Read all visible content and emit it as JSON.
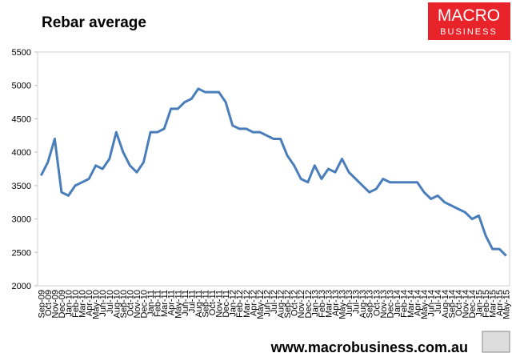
{
  "chart_data": {
    "type": "line",
    "title": "Rebar average",
    "categories": [
      "Sep-09",
      "Oct-09",
      "Nov-09",
      "Dec-09",
      "Jan-10",
      "Feb-10",
      "Mar-10",
      "Apr-10",
      "May-10",
      "Jun-10",
      "Jul-10",
      "Aug-10",
      "Sep-10",
      "Oct-10",
      "Nov-10",
      "Dec-10",
      "Jan-11",
      "Feb-11",
      "Mar-11",
      "Apr-11",
      "May-11",
      "Jun-11",
      "Jul-11",
      "Aug-11",
      "Sep-11",
      "Oct-11",
      "Nov-11",
      "Dec-11",
      "Jan-12",
      "Feb-12",
      "Mar-12",
      "Apr-12",
      "May-12",
      "Jun-12",
      "Jul-12",
      "Aug-12",
      "Sep-12",
      "Oct-12",
      "Nov-12",
      "Dec-12",
      "Jan-13",
      "Feb-13",
      "Mar-13",
      "Apr-13",
      "May-13",
      "Jun-13",
      "Jul-13",
      "Aug-13",
      "Sep-13",
      "Oct-13",
      "Nov-13",
      "Dec-13",
      "Jan-14",
      "Feb-14",
      "Mar-14",
      "Apr-14",
      "May-14",
      "Jun-14",
      "Jul-14",
      "Aug-14",
      "Sep-14",
      "Oct-14",
      "Nov-14",
      "Dec-14",
      "Jan-15",
      "Feb-15",
      "Mar-15",
      "Apr-15",
      "May-15"
    ],
    "values": [
      3650,
      3850,
      4200,
      3400,
      3350,
      3500,
      3550,
      3600,
      3800,
      3750,
      3900,
      4300,
      4000,
      3800,
      3700,
      3850,
      4300,
      4300,
      4350,
      4650,
      4650,
      4750,
      4800,
      4950,
      4900,
      4900,
      4900,
      4750,
      4400,
      4350,
      4350,
      4300,
      4300,
      4250,
      4200,
      4200,
      3950,
      3800,
      3600,
      3550,
      3800,
      3600,
      3750,
      3700,
      3900,
      3700,
      3600,
      3500,
      3400,
      3450,
      3600,
      3550,
      3550,
      3550,
      3550,
      3550,
      3400,
      3300,
      3350,
      3250,
      3200,
      3150,
      3100,
      3000,
      3050,
      2750,
      2550,
      2550,
      2450
    ],
    "color": "#4a7ebb",
    "ylim": [
      2000,
      5500
    ],
    "yticks": [
      2000,
      2500,
      3000,
      3500,
      4000,
      4500,
      5000,
      5500
    ],
    "grid": false
  },
  "logo": {
    "line1": "MACRO",
    "line2": "BUSINESS"
  },
  "footer": "www.macrobusiness.com.au"
}
